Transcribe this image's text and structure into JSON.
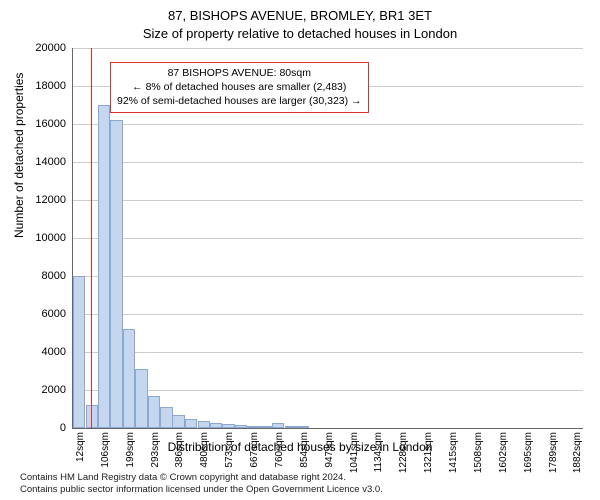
{
  "title_line1": "87, BISHOPS AVENUE, BROMLEY, BR1 3ET",
  "title_line2": "Size of property relative to detached houses in London",
  "y_axis_title": "Number of detached properties",
  "x_axis_title": "Distribution of detached houses by size in London",
  "footer_line1": "Contains HM Land Registry data © Crown copyright and database right 2024.",
  "footer_line2": "Contains public sector information licensed under the Open Government Licence v3.0.",
  "chart": {
    "type": "histogram",
    "background_color": "#ffffff",
    "grid_color": "#cccccc",
    "axis_color": "#666666",
    "bar_fill": "#c5d7ef",
    "bar_stroke": "#8aa8d0",
    "marker_color": "#e03030",
    "ylim": [
      0,
      20000
    ],
    "ytick_step": 2000,
    "yticks": [
      0,
      2000,
      4000,
      6000,
      8000,
      10000,
      12000,
      14000,
      16000,
      18000,
      20000
    ],
    "x_min": 12,
    "x_max": 1929,
    "xtick_step_sqm": 93.5,
    "xticks": [
      "12sqm",
      "106sqm",
      "199sqm",
      "293sqm",
      "386sqm",
      "480sqm",
      "573sqm",
      "667sqm",
      "760sqm",
      "854sqm",
      "947sqm",
      "1041sqm",
      "1134sqm",
      "1228sqm",
      "1321sqm",
      "1415sqm",
      "1508sqm",
      "1602sqm",
      "1695sqm",
      "1789sqm",
      "1882sqm"
    ],
    "bin_width_sqm": 46.75,
    "bars": [
      {
        "x_start": 12,
        "value": 8000
      },
      {
        "x_start": 59,
        "value": 1200
      },
      {
        "x_start": 106,
        "value": 17000
      },
      {
        "x_start": 152,
        "value": 16200
      },
      {
        "x_start": 199,
        "value": 5200
      },
      {
        "x_start": 246,
        "value": 3100
      },
      {
        "x_start": 293,
        "value": 1700
      },
      {
        "x_start": 340,
        "value": 1100
      },
      {
        "x_start": 386,
        "value": 700
      },
      {
        "x_start": 433,
        "value": 500
      },
      {
        "x_start": 480,
        "value": 350
      },
      {
        "x_start": 527,
        "value": 260
      },
      {
        "x_start": 573,
        "value": 200
      },
      {
        "x_start": 620,
        "value": 150
      },
      {
        "x_start": 667,
        "value": 120
      },
      {
        "x_start": 714,
        "value": 90
      },
      {
        "x_start": 760,
        "value": 250
      },
      {
        "x_start": 807,
        "value": 60
      },
      {
        "x_start": 854,
        "value": 50
      }
    ],
    "marker_sqm": 80,
    "annotation": {
      "line1": "87 BISHOPS AVENUE: 80sqm",
      "line2": "← 8% of detached houses are smaller (2,483)",
      "line3": "92% of semi-detached houses are larger (30,323) →",
      "box_border": "#e03030",
      "fontsize": 10.5
    },
    "title_fontsize": 13,
    "axis_title_fontsize": 12,
    "tick_fontsize": 11
  }
}
